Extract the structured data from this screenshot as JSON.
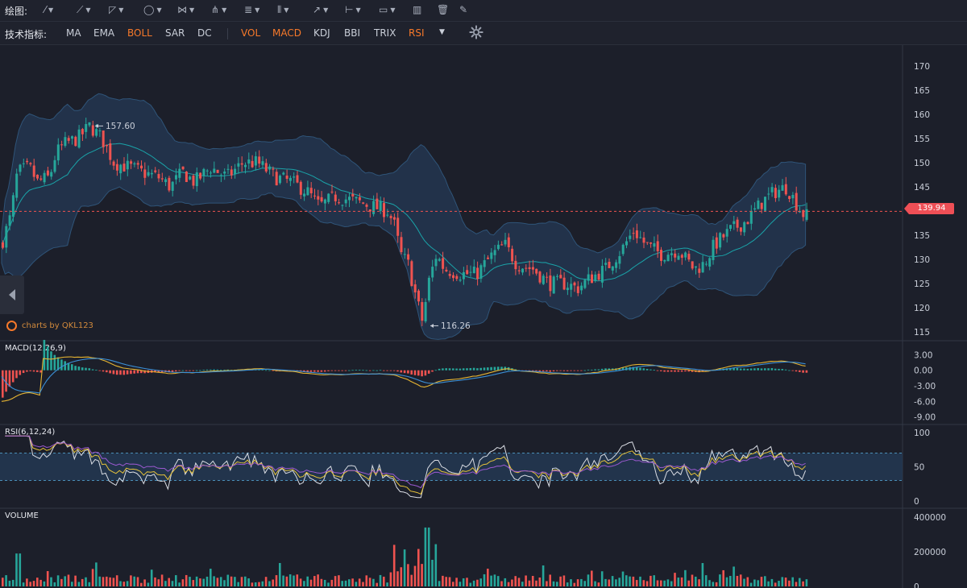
{
  "toolbar": {
    "draw_label": "绘图:",
    "indicator_label": "技术指标:",
    "main_indicators": [
      {
        "label": "MA",
        "active": false
      },
      {
        "label": "EMA",
        "active": false
      },
      {
        "label": "BOLL",
        "active": true
      },
      {
        "label": "SAR",
        "active": false
      },
      {
        "label": "DC",
        "active": false
      }
    ],
    "sub_indicators": [
      {
        "label": "VOL",
        "active": true
      },
      {
        "label": "MACD",
        "active": true
      },
      {
        "label": "KDJ",
        "active": false
      },
      {
        "label": "BBI",
        "active": false
      },
      {
        "label": "TRIX",
        "active": false
      },
      {
        "label": "RSI",
        "active": true
      }
    ],
    "draw_tools": [
      "line-icon",
      "ray-icon",
      "triangle-icon",
      "circle-icon",
      "fork-icon",
      "pitchfork-icon",
      "fibonacci-icon",
      "vertical-lines-icon",
      "arrow-icon",
      "range-icon",
      "comment-icon",
      "bars-icon",
      "trash-icon",
      "brush-icon"
    ]
  },
  "brand": "charts by QKL123",
  "colors": {
    "up": "#26a69a",
    "down": "#ef5350",
    "band": "#243a55",
    "mid": "#1aa3a8",
    "accent": "#f7792a"
  },
  "chart_data": [
    {
      "type": "candlestick",
      "title": "BOLL",
      "y_ticks": [
        170,
        165,
        160,
        155,
        150,
        145,
        140,
        135,
        130,
        125,
        120,
        115
      ],
      "ylim": [
        114,
        173
      ],
      "current_price": "139.94",
      "annotations": [
        {
          "text": "157.60",
          "value": 157.6
        },
        {
          "text": "116.26",
          "value": 116.26
        }
      ],
      "close_path": [
        [
          0,
          133
        ],
        [
          12,
          139
        ],
        [
          20,
          148
        ],
        [
          35,
          149
        ],
        [
          45,
          146
        ],
        [
          60,
          147
        ],
        [
          68,
          152
        ],
        [
          80,
          154
        ],
        [
          95,
          155
        ],
        [
          110,
          157.6
        ],
        [
          125,
          155
        ],
        [
          140,
          150
        ],
        [
          160,
          149
        ],
        [
          175,
          148
        ],
        [
          195,
          147
        ],
        [
          210,
          145
        ],
        [
          225,
          148
        ],
        [
          240,
          146
        ],
        [
          260,
          149
        ],
        [
          280,
          147
        ],
        [
          300,
          150
        ],
        [
          318,
          150
        ],
        [
          340,
          147
        ],
        [
          360,
          146
        ],
        [
          380,
          144
        ],
        [
          395,
          141
        ],
        [
          415,
          143
        ],
        [
          440,
          142
        ],
        [
          460,
          141
        ],
        [
          480,
          140
        ],
        [
          488,
          137
        ],
        [
          496,
          131
        ],
        [
          505,
          129
        ],
        [
          515,
          122
        ],
        [
          523,
          117
        ],
        [
          530,
          125
        ],
        [
          540,
          131
        ],
        [
          550,
          128
        ],
        [
          570,
          127
        ],
        [
          590,
          127
        ],
        [
          610,
          131
        ],
        [
          625,
          133
        ],
        [
          640,
          129
        ],
        [
          660,
          128
        ],
        [
          680,
          125
        ],
        [
          700,
          125
        ],
        [
          715,
          124
        ],
        [
          730,
          126
        ],
        [
          750,
          128
        ],
        [
          770,
          132
        ],
        [
          785,
          136
        ],
        [
          800,
          133
        ],
        [
          820,
          131
        ],
        [
          840,
          132
        ],
        [
          860,
          128
        ],
        [
          872,
          129
        ],
        [
          885,
          133
        ],
        [
          905,
          136
        ],
        [
          925,
          138
        ],
        [
          945,
          142
        ],
        [
          960,
          144
        ],
        [
          975,
          145
        ],
        [
          985,
          142
        ],
        [
          997,
          139
        ],
        [
          1005,
          139
        ]
      ]
    },
    {
      "type": "line",
      "title": "MACD(12,26,9)",
      "y_ticks": [
        "3.00",
        "0.00",
        "-3.00",
        "-6.00",
        "-9.00"
      ],
      "ylim": [
        -10,
        4
      ]
    },
    {
      "type": "line",
      "title": "RSI(6,12,24)",
      "y_ticks": [
        100,
        50,
        0
      ],
      "ylim": [
        0,
        100
      ],
      "band": [
        30,
        70
      ]
    },
    {
      "type": "bar",
      "title": "VOLUME",
      "y_ticks": [
        400000,
        200000,
        0
      ],
      "ylim": [
        0,
        400000
      ]
    }
  ]
}
